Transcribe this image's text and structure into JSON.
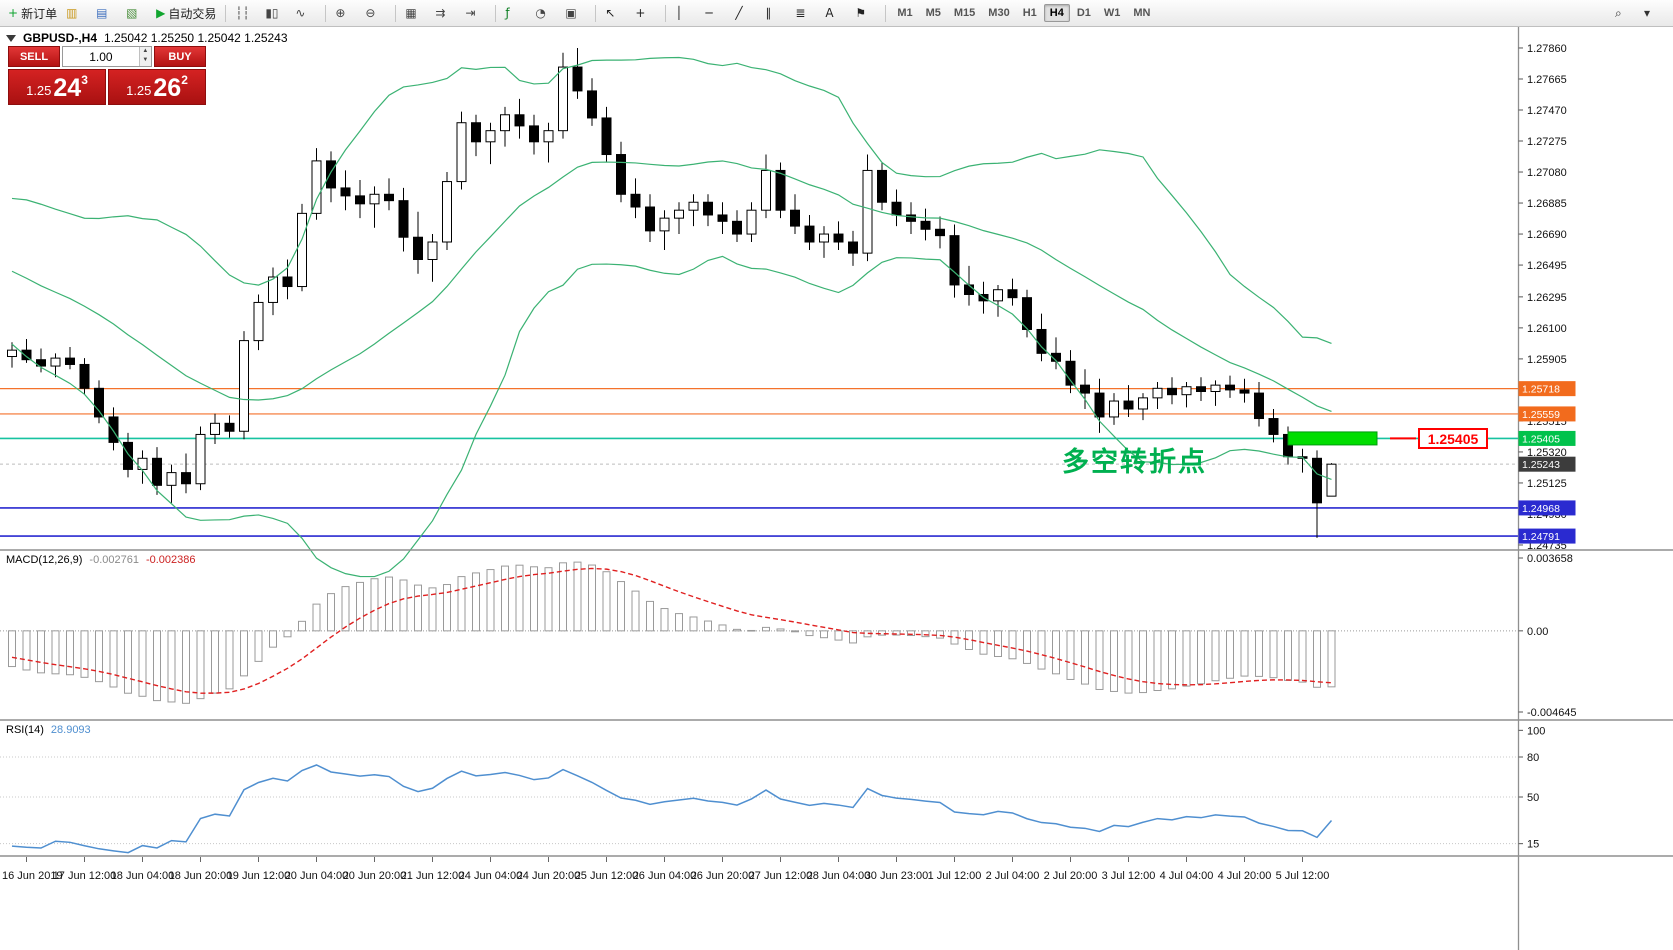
{
  "toolbar": {
    "items": [
      {
        "name": "new-order-button",
        "label": "新订单",
        "glyph": "+",
        "glyph_color": "#0da32e"
      },
      {
        "name": "charts-icon",
        "glyph": "▥",
        "glyph_color": "#c9991e"
      },
      {
        "name": "market-watch-icon",
        "glyph": "▤",
        "glyph_color": "#3e6fbe"
      },
      {
        "name": "navigator-icon",
        "glyph": "▧",
        "glyph_color": "#4a8f3c"
      },
      {
        "name": "autotrading-button",
        "label": "自动交易",
        "glyph": "▶",
        "glyph_color": "#11a52f"
      },
      {
        "sep": true
      },
      {
        "name": "bar-chart-icon",
        "glyph": "┆┆",
        "glyph_color": "#444444"
      },
      {
        "name": "candlestick-chart-icon",
        "glyph": "▮▯",
        "glyph_color": "#444444"
      },
      {
        "name": "line-chart-icon",
        "glyph": "∿",
        "glyph_color": "#444444"
      },
      {
        "sep": true
      },
      {
        "name": "zoom-in-button",
        "glyph": "⊕",
        "glyph_color": "#444444"
      },
      {
        "name": "zoom-out-button",
        "glyph": "⊖",
        "glyph_color": "#444444"
      },
      {
        "sep": true
      },
      {
        "name": "tile-windows-button",
        "glyph": "▦",
        "glyph_color": "#444444"
      },
      {
        "name": "auto-scroll-button",
        "glyph": "⇉",
        "glyph_color": "#444444"
      },
      {
        "name": "chart-shift-button",
        "glyph": "⇥",
        "glyph_color": "#444444"
      },
      {
        "sep": true
      },
      {
        "name": "indicators-button",
        "glyph": "ƒ",
        "glyph_color": "#0a7d20"
      },
      {
        "name": "periods-button",
        "glyph": "◔",
        "glyph_color": "#444444"
      },
      {
        "name": "templates-button",
        "glyph": "▣",
        "glyph_color": "#444444"
      },
      {
        "sep": true
      },
      {
        "name": "cursor-button",
        "glyph": "↖",
        "glyph_color": "#222222"
      },
      {
        "name": "crosshair-button",
        "glyph": "+",
        "glyph_color": "#222222"
      },
      {
        "sep": true
      },
      {
        "name": "vertical-line-button",
        "glyph": "│",
        "glyph_color": "#222222"
      },
      {
        "name": "horizontal-line-button",
        "glyph": "─",
        "glyph_color": "#222222"
      },
      {
        "name": "trendline-button",
        "glyph": "╱",
        "glyph_color": "#222222"
      },
      {
        "name": "channel-button",
        "glyph": "∥",
        "glyph_color": "#222222"
      },
      {
        "name": "fibonacci-button",
        "glyph": "≣",
        "glyph_color": "#222222"
      },
      {
        "name": "text-button",
        "glyph": "A",
        "glyph_color": "#222222"
      },
      {
        "name": "arrows-button",
        "glyph": "⚑",
        "glyph_color": "#222222"
      },
      {
        "sep": true
      }
    ],
    "timeframes": [
      "M1",
      "M5",
      "M15",
      "M30",
      "H1",
      "H4",
      "D1",
      "W1",
      "MN"
    ],
    "active_timeframe": "H4",
    "right_items": [
      {
        "name": "search-icon",
        "glyph": "⌕"
      },
      {
        "name": "chevron-down-icon",
        "glyph": "▾"
      }
    ]
  },
  "trade_panel": {
    "sell_label": "SELL",
    "buy_label": "BUY",
    "volume": "1.00",
    "spinner_up": "▲",
    "spinner_down": "▼",
    "sell_price": {
      "big": "1.25",
      "pips": "24",
      "frac": "3"
    },
    "buy_price": {
      "big": "1.25",
      "pips": "26",
      "frac": "2"
    }
  },
  "chart_data": {
    "type": "candlestick",
    "symbol_line": {
      "symbol": "GBPUSD-,H4",
      "ohlc": "1.25042 1.25250 1.25042 1.25243"
    },
    "warmup_closes": [
      1.2685,
      1.2678,
      1.2681,
      1.2672,
      1.2666,
      1.2669,
      1.266,
      1.2655,
      1.2658,
      1.265,
      1.2645,
      1.2648,
      1.2641,
      1.2637,
      1.264,
      1.2633,
      1.2629,
      1.2632,
      1.2626,
      1.2596
    ],
    "candles": [
      [
        1.2592,
        1.2601,
        1.2585,
        1.2596
      ],
      [
        1.2596,
        1.2603,
        1.2588,
        1.259
      ],
      [
        1.259,
        1.2597,
        1.2582,
        1.2586
      ],
      [
        1.2586,
        1.2594,
        1.2579,
        1.2591
      ],
      [
        1.2591,
        1.2598,
        1.2584,
        1.2587
      ],
      [
        1.2587,
        1.2591,
        1.2568,
        1.2572
      ],
      [
        1.2572,
        1.2577,
        1.255,
        1.2554
      ],
      [
        1.2554,
        1.256,
        1.2533,
        1.2538
      ],
      [
        1.2538,
        1.2544,
        1.2516,
        1.2521
      ],
      [
        1.2521,
        1.2533,
        1.2512,
        1.2528
      ],
      [
        1.2528,
        1.2535,
        1.2505,
        1.2511
      ],
      [
        1.2511,
        1.2524,
        1.25,
        1.2519
      ],
      [
        1.2519,
        1.2531,
        1.2506,
        1.2512
      ],
      [
        1.2512,
        1.2548,
        1.2508,
        1.2543
      ],
      [
        1.2543,
        1.2556,
        1.2537,
        1.255
      ],
      [
        1.255,
        1.2555,
        1.2541,
        1.2545
      ],
      [
        1.2545,
        1.2608,
        1.254,
        1.2602
      ],
      [
        1.2602,
        1.2631,
        1.2596,
        1.2626
      ],
      [
        1.2626,
        1.2648,
        1.2618,
        1.2642
      ],
      [
        1.2642,
        1.2653,
        1.2628,
        1.2636
      ],
      [
        1.2636,
        1.2688,
        1.2633,
        1.2682
      ],
      [
        1.2682,
        1.2723,
        1.2678,
        1.2715
      ],
      [
        1.2715,
        1.2721,
        1.2689,
        1.2698
      ],
      [
        1.2698,
        1.2709,
        1.2684,
        1.2693
      ],
      [
        1.2693,
        1.2703,
        1.2679,
        1.2688
      ],
      [
        1.2688,
        1.2699,
        1.2673,
        1.2694
      ],
      [
        1.2694,
        1.2704,
        1.2684,
        1.269
      ],
      [
        1.269,
        1.2698,
        1.2658,
        1.2667
      ],
      [
        1.2667,
        1.2683,
        1.2644,
        1.2653
      ],
      [
        1.2653,
        1.2669,
        1.2639,
        1.2664
      ],
      [
        1.2664,
        1.2708,
        1.2659,
        1.2702
      ],
      [
        1.2702,
        1.2746,
        1.2697,
        1.2739
      ],
      [
        1.2739,
        1.2744,
        1.2718,
        1.2727
      ],
      [
        1.2727,
        1.2739,
        1.2713,
        1.2734
      ],
      [
        1.2734,
        1.2749,
        1.2724,
        1.2744
      ],
      [
        1.2744,
        1.2754,
        1.2729,
        1.2737
      ],
      [
        1.2737,
        1.2744,
        1.2719,
        1.2727
      ],
      [
        1.2727,
        1.2739,
        1.2714,
        1.2734
      ],
      [
        1.2734,
        1.2783,
        1.2729,
        1.2774
      ],
      [
        1.2774,
        1.2786,
        1.2754,
        1.2759
      ],
      [
        1.2759,
        1.2767,
        1.2737,
        1.2742
      ],
      [
        1.2742,
        1.2749,
        1.2714,
        1.2719
      ],
      [
        1.2719,
        1.2727,
        1.2689,
        1.2694
      ],
      [
        1.2694,
        1.2704,
        1.2679,
        1.2686
      ],
      [
        1.2686,
        1.2694,
        1.2664,
        1.2671
      ],
      [
        1.2671,
        1.2684,
        1.2659,
        1.2679
      ],
      [
        1.2679,
        1.2689,
        1.2669,
        1.2684
      ],
      [
        1.2684,
        1.2694,
        1.2674,
        1.2689
      ],
      [
        1.2689,
        1.2694,
        1.2674,
        1.2681
      ],
      [
        1.2681,
        1.2689,
        1.2669,
        1.2677
      ],
      [
        1.2677,
        1.2684,
        1.2664,
        1.2669
      ],
      [
        1.2669,
        1.2689,
        1.2664,
        1.2684
      ],
      [
        1.2684,
        1.2719,
        1.2679,
        1.2709
      ],
      [
        1.2709,
        1.2714,
        1.2679,
        1.2684
      ],
      [
        1.2684,
        1.2694,
        1.2669,
        1.2674
      ],
      [
        1.2674,
        1.2681,
        1.2659,
        1.2664
      ],
      [
        1.2664,
        1.2674,
        1.2654,
        1.2669
      ],
      [
        1.2669,
        1.2677,
        1.2659,
        1.2664
      ],
      [
        1.2664,
        1.2671,
        1.2649,
        1.2657
      ],
      [
        1.2657,
        1.2719,
        1.2652,
        1.2709
      ],
      [
        1.2709,
        1.2714,
        1.2684,
        1.2689
      ],
      [
        1.2689,
        1.2697,
        1.2674,
        1.2681
      ],
      [
        1.2681,
        1.2689,
        1.2669,
        1.2677
      ],
      [
        1.2677,
        1.2685,
        1.2665,
        1.2672
      ],
      [
        1.2672,
        1.268,
        1.266,
        1.2668
      ],
      [
        1.2668,
        1.2675,
        1.2629,
        1.2637
      ],
      [
        1.2637,
        1.2649,
        1.2624,
        1.2631
      ],
      [
        1.2631,
        1.2639,
        1.2619,
        1.2627
      ],
      [
        1.2627,
        1.2637,
        1.2617,
        1.2634
      ],
      [
        1.2634,
        1.2641,
        1.2624,
        1.2629
      ],
      [
        1.2629,
        1.2634,
        1.2604,
        1.2609
      ],
      [
        1.2609,
        1.2619,
        1.2589,
        1.2594
      ],
      [
        1.2594,
        1.2604,
        1.2584,
        1.2589
      ],
      [
        1.2589,
        1.2596,
        1.2569,
        1.2574
      ],
      [
        1.2574,
        1.2584,
        1.2559,
        1.2569
      ],
      [
        1.2569,
        1.2578,
        1.2544,
        1.2554
      ],
      [
        1.2554,
        1.2569,
        1.2549,
        1.2564
      ],
      [
        1.2564,
        1.2574,
        1.2554,
        1.2559
      ],
      [
        1.2559,
        1.2569,
        1.2552,
        1.2566
      ],
      [
        1.2566,
        1.2576,
        1.2559,
        1.2572
      ],
      [
        1.2572,
        1.2579,
        1.2562,
        1.2568
      ],
      [
        1.2568,
        1.2576,
        1.256,
        1.2573
      ],
      [
        1.2573,
        1.2579,
        1.2564,
        1.257
      ],
      [
        1.257,
        1.2577,
        1.2561,
        1.2574
      ],
      [
        1.2574,
        1.258,
        1.2566,
        1.2571
      ],
      [
        1.2571,
        1.2578,
        1.2563,
        1.2569
      ],
      [
        1.2569,
        1.2576,
        1.2548,
        1.2553
      ],
      [
        1.2553,
        1.2559,
        1.2538,
        1.2543
      ],
      [
        1.2543,
        1.2548,
        1.2524,
        1.2529
      ],
      [
        1.2529,
        1.2534,
        1.2519,
        1.2528
      ],
      [
        1.2528,
        1.2533,
        1.2478,
        1.25
      ],
      [
        1.25042,
        1.2525,
        1.25042,
        1.25243
      ]
    ],
    "bollinger": {
      "period": 20,
      "deviation": 2
    },
    "hlines": [
      {
        "price": 1.25718,
        "color": "#f4722b",
        "width": 1.2
      },
      {
        "price": 1.25559,
        "color": "#f4722b",
        "width": 1.2
      },
      {
        "price": 1.25405,
        "color": "#17c3a0",
        "width": 1.6
      },
      {
        "price": 1.24968,
        "color": "#2a2ad0",
        "width": 1.6
      },
      {
        "price": 1.24791,
        "color": "#2a2ad0",
        "width": 1.6
      }
    ],
    "bid": {
      "price": 1.25243
    },
    "highlight_bar": {
      "price": 1.25405
    },
    "callout": {
      "text": "1.25405",
      "color": "#ff0000"
    },
    "annotation": {
      "text": "多空转折点",
      "color": "#00b050"
    },
    "price_axis": {
      "labels": [
        "1.27860",
        "1.27665",
        "1.27470",
        "1.27275",
        "1.27080",
        "1.26885",
        "1.26690",
        "1.26495",
        "1.26295",
        "1.26100",
        "1.25905",
        "1.25515",
        "1.25320",
        "1.25125",
        "1.24930",
        "1.24735"
      ]
    },
    "price_tags": [
      {
        "text": "1.25718",
        "color": "#f26b1d"
      },
      {
        "text": "1.25559",
        "color": "#f26b1d"
      },
      {
        "text": "1.25405",
        "color": "#00c24b"
      },
      {
        "text": "1.25243",
        "color": "#3c3c3c"
      },
      {
        "text": "1.24968",
        "color": "#2a2ad0"
      },
      {
        "text": "1.24791",
        "color": "#2a2ad0"
      }
    ],
    "macd": {
      "label": "MACD(12,26,9)",
      "value_main": "-0.002761",
      "value_signal": "-0.002386",
      "fast": 12,
      "slow": 26,
      "signal": 9,
      "axis_labels": [
        "0.003658",
        "0.00",
        "-0.004645"
      ]
    },
    "rsi": {
      "label": "RSI(14)",
      "value": "28.9093",
      "period": 14,
      "axis_labels": [
        "100",
        "80",
        "50",
        "15"
      ],
      "levels": [
        80,
        50,
        15
      ]
    },
    "time_labels": [
      "16 Jun 2019",
      "17 Jun 12:00",
      "18 Jun 04:00",
      "18 Jun 20:00",
      "19 Jun 12:00",
      "20 Jun 04:00",
      "20 Jun 20:00",
      "21 Jun 12:00",
      "24 Jun 04:00",
      "24 Jun 20:00",
      "25 Jun 12:00",
      "26 Jun 04:00",
      "26 Jun 20:00",
      "27 Jun 12:00",
      "28 Jun 04:00",
      "30 Jun 23:00",
      "1 Jul 12:00",
      "2 Jul 04:00",
      "2 Jul 20:00",
      "3 Jul 12:00",
      "4 Jul 04:00",
      "4 Jul 20:00",
      "5 Jul 12:00"
    ],
    "colors": {
      "bull": "#ffffff",
      "bear": "#000000",
      "wick": "#000000",
      "bollinger": "#3bb273",
      "macd_hist": "#9a9a9a",
      "macd_signal": "#e02020",
      "rsi": "#4f8fd0",
      "highlight": "#00dd00"
    }
  }
}
